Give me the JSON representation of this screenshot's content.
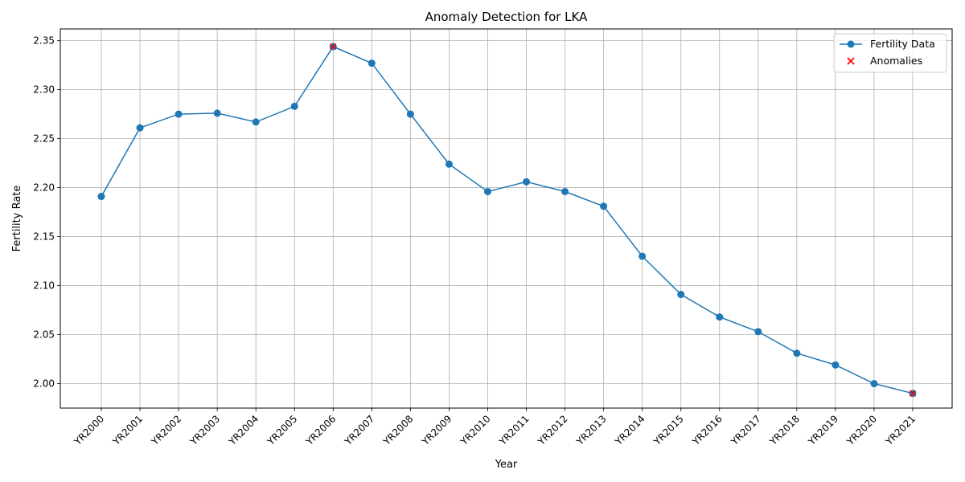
{
  "chart_data": {
    "type": "line",
    "title": "Anomaly Detection for LKA",
    "xlabel": "Year",
    "ylabel": "Fertility Rate",
    "categories": [
      "YR2000",
      "YR2001",
      "YR2002",
      "YR2003",
      "YR2004",
      "YR2005",
      "YR2006",
      "YR2007",
      "YR2008",
      "YR2009",
      "YR2010",
      "YR2011",
      "YR2012",
      "YR2013",
      "YR2014",
      "YR2015",
      "YR2016",
      "YR2017",
      "YR2018",
      "YR2019",
      "YR2020",
      "YR2021"
    ],
    "series": [
      {
        "name": "Fertility Data",
        "color": "#1f77b4",
        "values": [
          2.191,
          2.261,
          2.275,
          2.276,
          2.267,
          2.283,
          2.344,
          2.327,
          2.275,
          2.224,
          2.196,
          2.206,
          2.196,
          2.181,
          2.13,
          2.091,
          2.068,
          2.053,
          2.031,
          2.019,
          2.0,
          1.99
        ]
      }
    ],
    "anomalies": {
      "name": "Anomalies",
      "color": "#ff0000",
      "marker": "x",
      "points": [
        {
          "x": "YR2006",
          "y": 2.344
        },
        {
          "x": "YR2021",
          "y": 1.99
        }
      ]
    },
    "ylim": [
      1.975,
      2.362
    ],
    "yticks": [
      2.0,
      2.05,
      2.1,
      2.15,
      2.2,
      2.25,
      2.3,
      2.35
    ],
    "ytick_labels": [
      "2.00",
      "2.05",
      "2.10",
      "2.15",
      "2.20",
      "2.25",
      "2.30",
      "2.35"
    ],
    "grid": true,
    "legend_position": "top-right"
  }
}
